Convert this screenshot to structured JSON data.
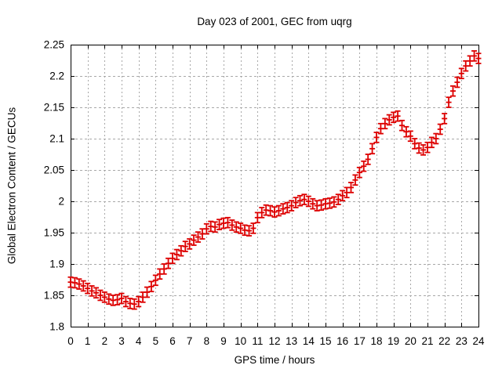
{
  "window": {
    "background": "#ffffff"
  },
  "chart_data": {
    "type": "scatter",
    "subtype": "points-with-yerrorbars",
    "title": "Day 023 of 2001, GEC from uqrg",
    "xlabel": "GPS time / hours",
    "ylabel": "Global Electron Content / GECUs",
    "xlim": [
      0,
      24
    ],
    "ylim": [
      1.8,
      2.25
    ],
    "grid": true,
    "legend": "none",
    "colors": {
      "series": "#dd0000",
      "grid": "#a8a8a8",
      "axis": "#000000",
      "background": "#ffffff"
    },
    "xticks": {
      "values": [
        0,
        1,
        2,
        3,
        4,
        5,
        6,
        7,
        8,
        9,
        10,
        11,
        12,
        13,
        14,
        15,
        16,
        17,
        18,
        19,
        20,
        21,
        22,
        23,
        24
      ],
      "labels": [
        "0",
        "1",
        "2",
        "3",
        "4",
        "5",
        "6",
        "7",
        "8",
        "9",
        "10",
        "11",
        "12",
        "13",
        "14",
        "15",
        "16",
        "17",
        "18",
        "19",
        "20",
        "21",
        "22",
        "23",
        "24"
      ]
    },
    "yticks": {
      "values": [
        1.8,
        1.85,
        1.9,
        1.95,
        2.0,
        2.05,
        2.1,
        2.15,
        2.2,
        2.25
      ],
      "labels": [
        "1.8",
        "1.85",
        "1.9",
        "1.95",
        "2",
        "2.05",
        "2.1",
        "2.15",
        "2.2",
        "2.25"
      ]
    },
    "series": [
      {
        "name": "GEC from uqrg, day 023 of 2001",
        "yerr": 0.008,
        "points": [
          [
            0.0,
            1.871
          ],
          [
            0.25,
            1.87
          ],
          [
            0.5,
            1.868
          ],
          [
            0.75,
            1.865
          ],
          [
            1.0,
            1.861
          ],
          [
            1.25,
            1.857
          ],
          [
            1.5,
            1.854
          ],
          [
            1.75,
            1.85
          ],
          [
            2.0,
            1.847
          ],
          [
            2.25,
            1.844
          ],
          [
            2.5,
            1.842
          ],
          [
            2.75,
            1.843
          ],
          [
            3.0,
            1.845
          ],
          [
            3.25,
            1.84
          ],
          [
            3.5,
            1.837
          ],
          [
            3.75,
            1.836
          ],
          [
            4.0,
            1.84
          ],
          [
            4.25,
            1.847
          ],
          [
            4.5,
            1.855
          ],
          [
            4.75,
            1.864
          ],
          [
            5.0,
            1.874
          ],
          [
            5.25,
            1.884
          ],
          [
            5.5,
            1.892
          ],
          [
            5.75,
            1.901
          ],
          [
            6.0,
            1.909
          ],
          [
            6.25,
            1.915
          ],
          [
            6.5,
            1.921
          ],
          [
            6.75,
            1.928
          ],
          [
            7.0,
            1.932
          ],
          [
            7.25,
            1.938
          ],
          [
            7.5,
            1.943
          ],
          [
            7.75,
            1.948
          ],
          [
            8.0,
            1.956
          ],
          [
            8.25,
            1.96
          ],
          [
            8.5,
            1.959
          ],
          [
            8.75,
            1.963
          ],
          [
            9.0,
            1.965
          ],
          [
            9.25,
            1.966
          ],
          [
            9.5,
            1.962
          ],
          [
            9.75,
            1.959
          ],
          [
            10.0,
            1.957
          ],
          [
            10.25,
            1.954
          ],
          [
            10.5,
            1.953
          ],
          [
            10.75,
            1.957
          ],
          [
            11.0,
            1.974
          ],
          [
            11.25,
            1.982
          ],
          [
            11.5,
            1.986
          ],
          [
            11.75,
            1.985
          ],
          [
            12.0,
            1.983
          ],
          [
            12.25,
            1.985
          ],
          [
            12.5,
            1.988
          ],
          [
            12.75,
            1.99
          ],
          [
            13.0,
            1.993
          ],
          [
            13.25,
            1.998
          ],
          [
            13.5,
            2.001
          ],
          [
            13.75,
            2.003
          ],
          [
            14.0,
            2.0
          ],
          [
            14.25,
            1.996
          ],
          [
            14.5,
            1.993
          ],
          [
            14.75,
            1.994
          ],
          [
            15.0,
            1.996
          ],
          [
            15.25,
            1.997
          ],
          [
            15.5,
            1.999
          ],
          [
            15.75,
            2.003
          ],
          [
            16.0,
            2.009
          ],
          [
            16.25,
            2.014
          ],
          [
            16.5,
            2.022
          ],
          [
            16.75,
            2.034
          ],
          [
            17.0,
            2.046
          ],
          [
            17.25,
            2.056
          ],
          [
            17.5,
            2.067
          ],
          [
            17.75,
            2.084
          ],
          [
            18.0,
            2.102
          ],
          [
            18.25,
            2.116
          ],
          [
            18.5,
            2.124
          ],
          [
            18.75,
            2.13
          ],
          [
            19.0,
            2.134
          ],
          [
            19.25,
            2.136
          ],
          [
            19.5,
            2.121
          ],
          [
            19.75,
            2.111
          ],
          [
            20.0,
            2.104
          ],
          [
            20.25,
            2.092
          ],
          [
            20.5,
            2.085
          ],
          [
            20.75,
            2.082
          ],
          [
            21.0,
            2.086
          ],
          [
            21.25,
            2.094
          ],
          [
            21.5,
            2.1
          ],
          [
            21.75,
            2.115
          ],
          [
            22.0,
            2.132
          ],
          [
            22.25,
            2.158
          ],
          [
            22.5,
            2.176
          ],
          [
            22.75,
            2.19
          ],
          [
            23.0,
            2.204
          ],
          [
            23.25,
            2.216
          ],
          [
            23.5,
            2.224
          ],
          [
            23.75,
            2.232
          ],
          [
            24.0,
            2.228
          ]
        ]
      }
    ]
  }
}
